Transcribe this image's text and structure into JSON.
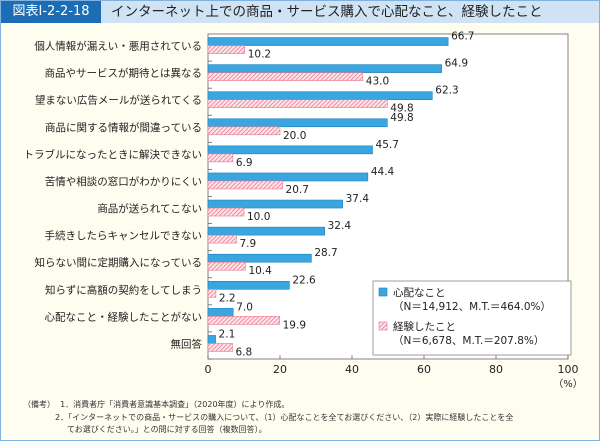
{
  "figure_number": "図表Ⅰ-2-2-18",
  "title": "インターネット上での商品・サービス購入で心配なこと、経験したこと",
  "chart_data": {
    "type": "bar",
    "orientation": "horizontal",
    "categories": [
      "個人情報が漏えい・悪用されている",
      "商品やサービスが期待とは異なる",
      "望まない広告メールが送られてくる",
      "商品に関する情報が間違っている",
      "トラブルになったときに解決できない",
      "苦情や相談の窓口がわかりにくい",
      "商品が送られてこない",
      "手続きしたらキャンセルできない",
      "知らない間に定期購入になっている",
      "知らずに高額の契約をしてしまう",
      "心配なこと・経験したことがない",
      "無回答"
    ],
    "series": [
      {
        "name": "心配なこと",
        "sub": "（N＝14,912、M.T.＝464.0%）",
        "color": "#3aa6e0",
        "pattern": "solid",
        "values": [
          66.7,
          64.9,
          62.3,
          49.8,
          45.7,
          44.4,
          37.4,
          32.4,
          28.7,
          22.6,
          7.0,
          2.1
        ]
      },
      {
        "name": "経験したこと",
        "sub": "（N＝6,678、M.T.＝207.8%）",
        "color": "#e8798f",
        "pattern": "hatched",
        "values": [
          10.2,
          43.0,
          49.8,
          20.0,
          6.9,
          20.7,
          10.0,
          7.9,
          10.4,
          2.2,
          19.9,
          6.8
        ]
      }
    ],
    "xlim": [
      0,
      100
    ],
    "xticks": [
      "0",
      "20",
      "40",
      "60",
      "80",
      "100"
    ],
    "xunit": "（%）",
    "legend": "bottom-right",
    "grid": false
  },
  "notes": {
    "label": "（備考）",
    "lines": [
      "1．消費者庁「消費者意識基本調査」（2020年度）により作成。",
      "2．「インターネットでの商品・サービスの購入について、（1）心配なことを全てお選びください、（2）実際に経験したことを全",
      "てお選びください。」との問に対する回答（複数回答）。"
    ]
  }
}
